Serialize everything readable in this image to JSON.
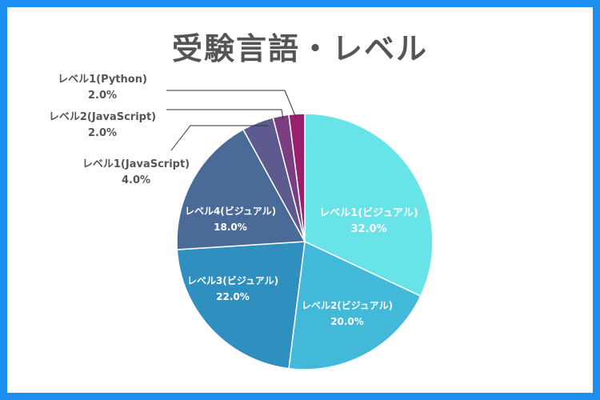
{
  "chart_data": {
    "type": "pie",
    "title": "受験言語・レベル",
    "slices": [
      {
        "label": "レベル1(ビジュアル)",
        "percent_label": "32.0%",
        "value": 32.0,
        "color": "#68e3e8",
        "label_position": "inside",
        "text_color": "#ffffff"
      },
      {
        "label": "レベル2(ビジュアル)",
        "percent_label": "20.0%",
        "value": 20.0,
        "color": "#43b9d9",
        "label_position": "inside",
        "text_color": "#ffffff"
      },
      {
        "label": "レベル3(ビジュアル)",
        "percent_label": "22.0%",
        "value": 22.0,
        "color": "#2f8fbe",
        "label_position": "inside",
        "text_color": "#ffffff"
      },
      {
        "label": "レベル4(ビジュアル)",
        "percent_label": "18.0%",
        "value": 18.0,
        "color": "#4a6b98",
        "label_position": "inside",
        "text_color": "#ffffff"
      },
      {
        "label": "レベル1(JavaScript)",
        "percent_label": "4.0%",
        "value": 4.0,
        "color": "#5c5a8e",
        "label_position": "outside",
        "text_color": "#555555"
      },
      {
        "label": "レベル2(JavaScript)",
        "percent_label": "2.0%",
        "value": 2.0,
        "color": "#7a3f83",
        "label_position": "outside",
        "text_color": "#555555"
      },
      {
        "label": "レベル1(Python)",
        "percent_label": "2.0%",
        "value": 2.0,
        "color": "#9a1f6e",
        "label_position": "outside",
        "text_color": "#555555"
      }
    ]
  }
}
